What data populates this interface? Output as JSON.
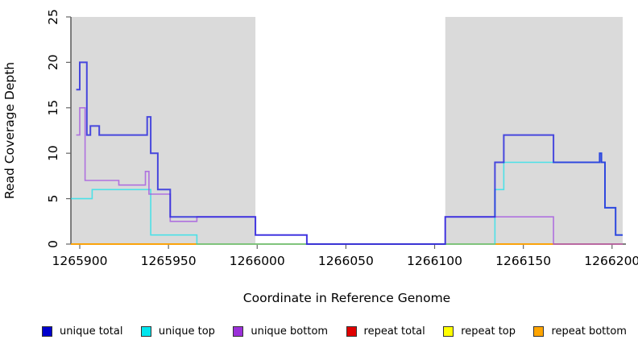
{
  "chart_data": {
    "type": "line",
    "subtype": "step-after",
    "title": "",
    "xlabel": "Coordinate in Reference Genome",
    "ylabel": "Read Coverage Depth",
    "xlim": [
      1265895,
      1266206
    ],
    "ylim": [
      0,
      25
    ],
    "x_ticks": [
      "1265900",
      "1265950",
      "1266000",
      "1266050",
      "1266100",
      "1266150",
      "1266200"
    ],
    "x_tick_values": [
      1265900,
      1265950,
      1266000,
      1266050,
      1266100,
      1266150,
      1266200
    ],
    "y_ticks": [
      "0",
      "5",
      "10",
      "15",
      "20",
      "25"
    ],
    "y_tick_values": [
      0,
      5,
      10,
      15,
      20,
      25
    ],
    "grid": "off",
    "legend_position": "bottom",
    "shade_color": "#DADADA",
    "axis_color": "#333333",
    "tick_color": "#666666",
    "shaded_regions": [
      {
        "from": 1265895,
        "to": 1265999
      },
      {
        "from": 1266106,
        "to": 1266206
      }
    ],
    "series": [
      {
        "name": "repeat top",
        "color": "#FFFF00",
        "opacity": 1,
        "width": 1.4,
        "points": [
          [
            1265895,
            0
          ],
          [
            1266206,
            0
          ]
        ]
      },
      {
        "name": "repeat total",
        "color": "#CC2255",
        "opacity": 0.7,
        "width": 1.6,
        "points": [
          [
            1265895,
            0
          ],
          [
            1266206,
            0
          ]
        ]
      },
      {
        "name": "repeat bottom",
        "color": "#FFA500",
        "opacity": 1,
        "width": 1.8,
        "points": [
          [
            1265895,
            0
          ],
          [
            1266167,
            0
          ]
        ]
      },
      {
        "name": "unique top",
        "color": "#00E5EE",
        "opacity": 0.65,
        "width": 1.6,
        "points": [
          [
            1265895,
            5
          ],
          [
            1265907,
            6
          ],
          [
            1265940,
            1
          ],
          [
            1265966,
            0
          ],
          [
            1266134,
            6
          ],
          [
            1266139,
            9
          ],
          [
            1266193,
            10
          ],
          [
            1266194,
            9
          ],
          [
            1266196,
            4
          ],
          [
            1266202,
            1
          ],
          [
            1266206,
            1
          ]
        ]
      },
      {
        "name": "unique bottom",
        "color": "#A04FE0",
        "opacity": 0.75,
        "width": 1.6,
        "points": [
          [
            1265898,
            12
          ],
          [
            1265900,
            15
          ],
          [
            1265903,
            7
          ],
          [
            1265922,
            6.5
          ],
          [
            1265937,
            8
          ],
          [
            1265939,
            5.5
          ],
          [
            1265951,
            2.5
          ],
          [
            1265966,
            3
          ],
          [
            1265999,
            1
          ],
          [
            1266028,
            0
          ],
          [
            1266106,
            3
          ],
          [
            1266167,
            0
          ],
          [
            1266206,
            0
          ]
        ]
      },
      {
        "name": "unique total",
        "color": "#2222DD",
        "opacity": 0.8,
        "width": 2,
        "points": [
          [
            1265898,
            17
          ],
          [
            1265900,
            20
          ],
          [
            1265904,
            12
          ],
          [
            1265906,
            13
          ],
          [
            1265911,
            12
          ],
          [
            1265938,
            14
          ],
          [
            1265940,
            10
          ],
          [
            1265944,
            6
          ],
          [
            1265951,
            3
          ],
          [
            1265999,
            1
          ],
          [
            1266028,
            0
          ],
          [
            1266106,
            3
          ],
          [
            1266134,
            9
          ],
          [
            1266139,
            12
          ],
          [
            1266167,
            9
          ],
          [
            1266193,
            10
          ],
          [
            1266194,
            9
          ],
          [
            1266196,
            4
          ],
          [
            1266202,
            1
          ],
          [
            1266206,
            1
          ]
        ]
      }
    ],
    "legend": [
      {
        "label": "unique total",
        "color": "#0000CD"
      },
      {
        "label": "unique top",
        "color": "#00E5EE"
      },
      {
        "label": "unique bottom",
        "color": "#9B30D9"
      },
      {
        "label": "repeat total",
        "color": "#E00000"
      },
      {
        "label": "repeat top",
        "color": "#FFFF00"
      },
      {
        "label": "repeat bottom",
        "color": "#FFA500"
      }
    ]
  }
}
